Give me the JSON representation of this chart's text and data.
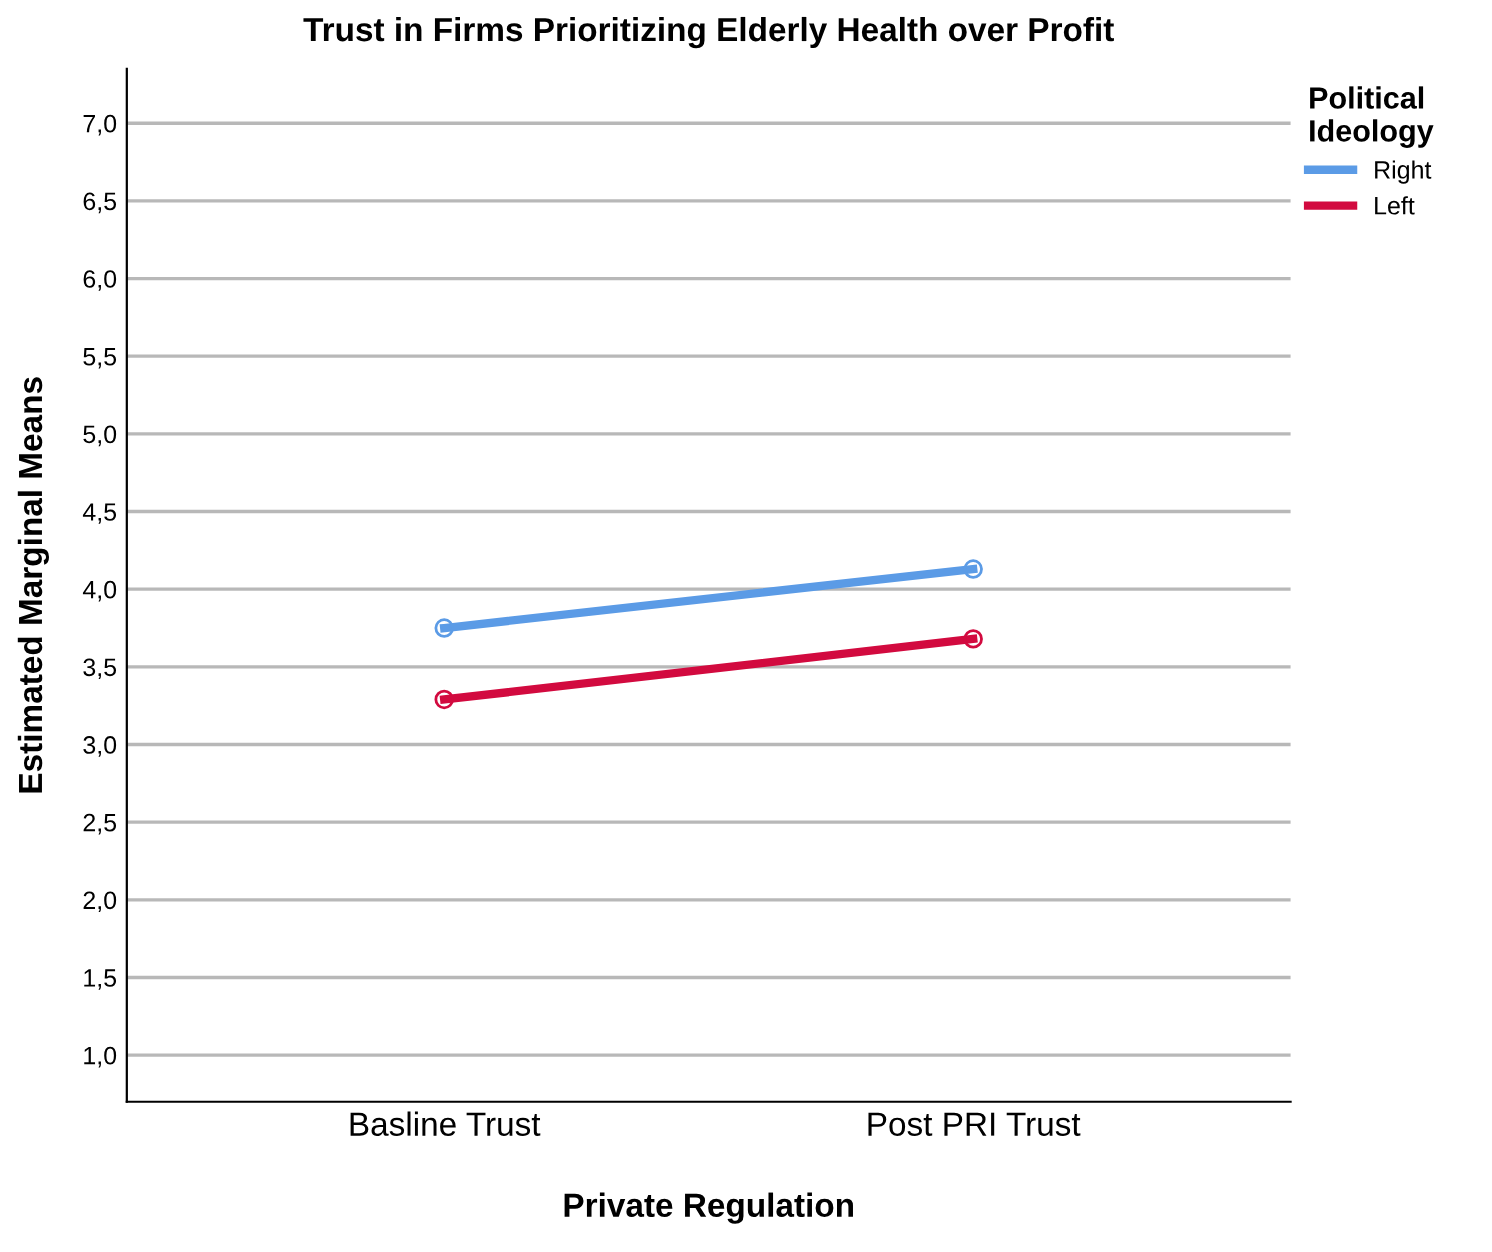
{
  "chart_data": {
    "type": "line",
    "title": "Trust in Firms Prioritizing Elderly Health over Profit",
    "xlabel": "Private Regulation",
    "ylabel": "Estimated Marginal Means",
    "legend_title": "Political\nIdeology",
    "categories": [
      "Basline Trust",
      "Post PRI Trust"
    ],
    "series": [
      {
        "name": "Right",
        "color": "#5b9be6",
        "values": [
          3.75,
          4.13
        ]
      },
      {
        "name": "Left",
        "color": "#d20a3f",
        "values": [
          3.29,
          3.68
        ]
      }
    ],
    "ylim": [
      0.7,
      7.35
    ],
    "yticks": [
      {
        "value": 1.0,
        "label": "1,0"
      },
      {
        "value": 1.5,
        "label": "1,5"
      },
      {
        "value": 2.0,
        "label": "2,0"
      },
      {
        "value": 2.5,
        "label": "2,5"
      },
      {
        "value": 3.0,
        "label": "3,0"
      },
      {
        "value": 3.5,
        "label": "3,5"
      },
      {
        "value": 4.0,
        "label": "4,0"
      },
      {
        "value": 4.5,
        "label": "4,5"
      },
      {
        "value": 5.0,
        "label": "5,0"
      },
      {
        "value": 5.5,
        "label": "5,5"
      },
      {
        "value": 6.0,
        "label": "6,0"
      },
      {
        "value": 6.5,
        "label": "6,5"
      },
      {
        "value": 7.0,
        "label": "7,0"
      }
    ],
    "grid": "y",
    "legend": "top right",
    "marker": "circle",
    "line_style": "solid"
  }
}
